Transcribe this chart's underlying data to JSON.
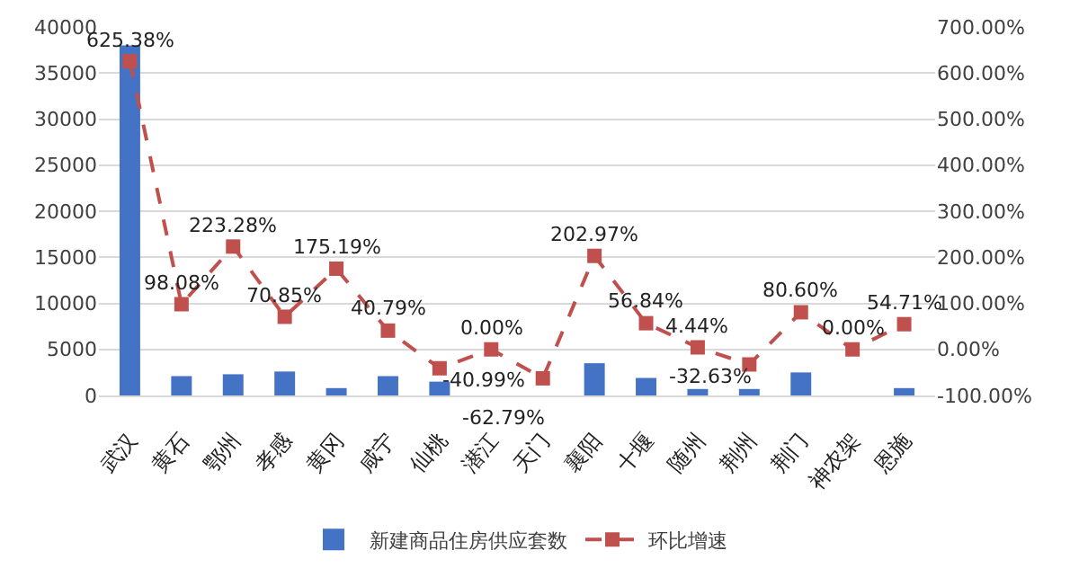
{
  "chart_data": {
    "type": "bar",
    "categories": [
      "武汉",
      "黄石",
      "鄂州",
      "孝感",
      "黄冈",
      "咸宁",
      "仙桃",
      "潜江",
      "天门",
      "襄阳",
      "十堰",
      "随州",
      "荆州",
      "荆门",
      "神农架",
      "恩施"
    ],
    "series": [
      {
        "name": "新建商品住房供应套数",
        "type": "bar",
        "color": "#4472c4",
        "values": [
          38000,
          2100,
          2300,
          2600,
          800,
          2100,
          1500,
          0,
          0,
          3500,
          1900,
          700,
          700,
          2500,
          0,
          800
        ]
      },
      {
        "name": "环比增速",
        "type": "line",
        "axis": "y2",
        "color": "#c0504d",
        "marker": "square",
        "line_style": "dashed",
        "values": [
          625.38,
          98.08,
          223.28,
          70.85,
          175.19,
          40.79,
          -40.99,
          0.0,
          -62.79,
          202.97,
          56.84,
          4.44,
          -32.63,
          80.6,
          0.0,
          54.71
        ],
        "value_labels": [
          "625.38%",
          "98.08%",
          "223.28%",
          "70.85%",
          "175.19%",
          "40.79%",
          "-40.99%",
          "0.00%",
          "-62.79%",
          "202.97%",
          "56.84%",
          "4.44%",
          "-32.63%",
          "80.60%",
          "0.00%",
          "54.71%"
        ]
      }
    ],
    "ylim": [
      0,
      40000
    ],
    "yticks": [
      0,
      5000,
      10000,
      15000,
      20000,
      25000,
      30000,
      35000,
      40000
    ],
    "y2lim": [
      -100,
      700
    ],
    "y2ticks": [
      {
        "value": -100,
        "label": "-100.00%"
      },
      {
        "value": 0,
        "label": "0.00%"
      },
      {
        "value": 100,
        "label": "100.00%"
      },
      {
        "value": 200,
        "label": "200.00%"
      },
      {
        "value": 300,
        "label": "300.00%"
      },
      {
        "value": 400,
        "label": "400.00%"
      },
      {
        "value": 500,
        "label": "500.00%"
      },
      {
        "value": 600,
        "label": "600.00%"
      },
      {
        "value": 700,
        "label": "700.00%"
      }
    ],
    "grid": "y",
    "legend": "bottom"
  }
}
